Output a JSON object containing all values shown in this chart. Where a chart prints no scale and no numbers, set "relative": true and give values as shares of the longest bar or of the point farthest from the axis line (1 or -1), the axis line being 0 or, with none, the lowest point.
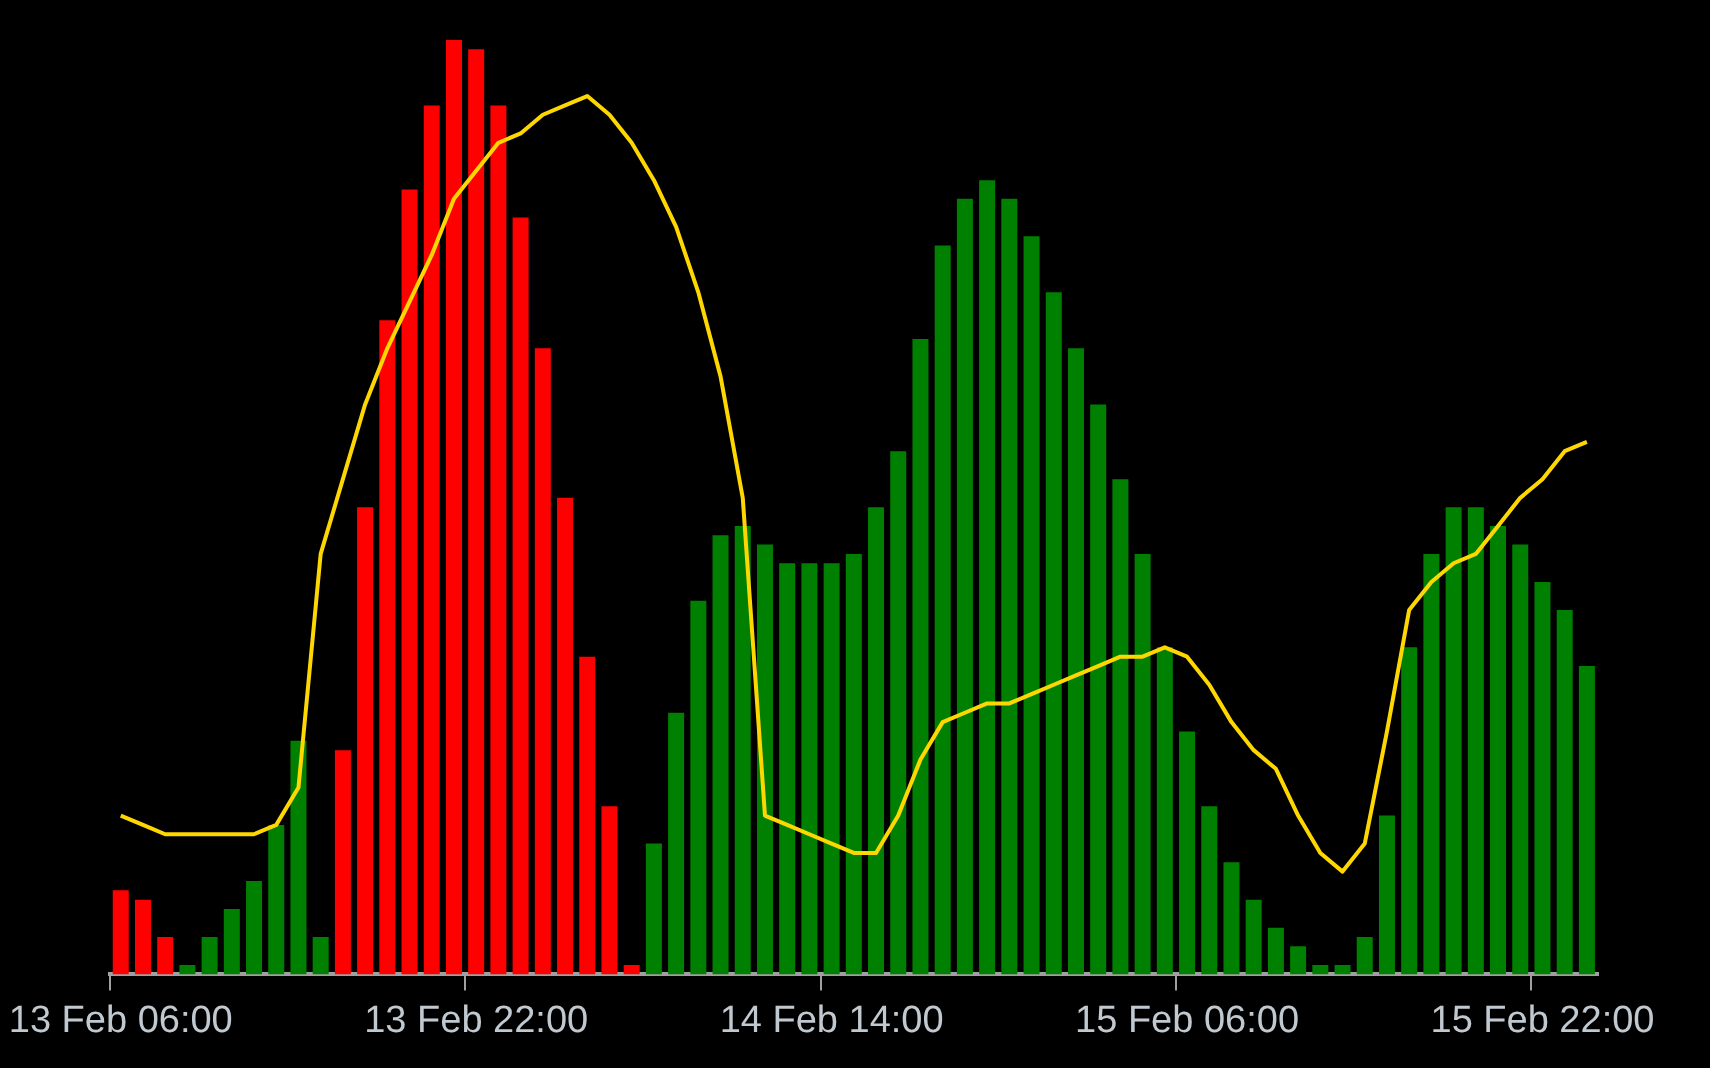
{
  "chart_data": {
    "type": "bar",
    "relative": true,
    "grid": false,
    "legend": false,
    "tick_labels": "x",
    "marker": "none",
    "categories": [
      "13 Feb 06:00",
      null,
      null,
      null,
      null,
      null,
      null,
      null,
      null,
      null,
      null,
      null,
      null,
      null,
      null,
      null,
      "13 Feb 22:00",
      null,
      null,
      null,
      null,
      null,
      null,
      null,
      null,
      null,
      null,
      null,
      null,
      null,
      null,
      null,
      "14 Feb 14:00",
      null,
      null,
      null,
      null,
      null,
      null,
      null,
      null,
      null,
      null,
      null,
      null,
      null,
      null,
      null,
      "15 Feb 06:00",
      null,
      null,
      null,
      null,
      null,
      null,
      null,
      null,
      null,
      null,
      null,
      null,
      null,
      null,
      null,
      "15 Feb 22:00",
      null,
      null
    ],
    "series": [
      {
        "type": "bar",
        "colors": [
          "#ff0000",
          "#ff0000",
          "#ff0000",
          "#008000",
          "#008000",
          "#008000",
          "#008000",
          "#008000",
          "#008000",
          "#008000",
          "#ff0000",
          "#ff0000",
          "#ff0000",
          "#ff0000",
          "#ff0000",
          "#ff0000",
          "#ff0000",
          "#ff0000",
          "#ff0000",
          "#ff0000",
          "#ff0000",
          "#ff0000",
          "#ff0000",
          "#ff0000",
          "#008000",
          "#008000",
          "#008000",
          "#008000",
          "#008000",
          "#008000",
          "#008000",
          "#008000",
          "#008000",
          "#008000",
          "#008000",
          "#008000",
          "#008000",
          "#008000",
          "#008000",
          "#008000",
          "#008000",
          "#008000",
          "#008000",
          "#008000",
          "#008000",
          "#008000",
          "#008000",
          "#008000",
          "#008000",
          "#008000",
          "#008000",
          "#008000",
          "#008000",
          "#008000",
          "#008000",
          "#008000",
          "#008000",
          "#008000",
          "#008000",
          "#008000",
          "#008000",
          "#008000",
          "#008000",
          "#008000",
          "#008000",
          "#008000",
          "#008000"
        ],
        "values": [
          0.09,
          0.08,
          0.04,
          0.01,
          0.04,
          0.07,
          0.1,
          0.16,
          0.25,
          0.04,
          0.24,
          0.5,
          0.7,
          0.84,
          0.93,
          1,
          0.99,
          0.93,
          0.81,
          0.67,
          0.51,
          0.34,
          0.18,
          0.01,
          0.14,
          0.28,
          0.4,
          0.47,
          0.48,
          0.46,
          0.44,
          0.44,
          0.44,
          0.45,
          0.5,
          0.56,
          0.68,
          0.78,
          0.83,
          0.85,
          0.83,
          0.79,
          0.73,
          0.67,
          0.61,
          0.53,
          0.45,
          0.35,
          0.26,
          0.18,
          0.12,
          0.08,
          0.05,
          0.03,
          0.01,
          0.01,
          0.04,
          0.17,
          0.35,
          0.45,
          0.5,
          0.5,
          0.48,
          0.46,
          0.42,
          0.39,
          0.33
        ]
      },
      {
        "type": "line",
        "color": "#ffd700",
        "line_style": "solid",
        "values": [
          0.17,
          0.16,
          0.15,
          0.15,
          0.15,
          0.15,
          0.15,
          0.16,
          0.2,
          0.45,
          0.53,
          0.61,
          0.67,
          0.72,
          0.77,
          0.83,
          0.86,
          0.89,
          0.9,
          0.92,
          0.93,
          0.94,
          0.92,
          0.89,
          0.85,
          0.8,
          0.73,
          0.64,
          0.51,
          0.17,
          0.16,
          0.15,
          0.14,
          0.13,
          0.13,
          0.17,
          0.23,
          0.27,
          0.28,
          0.29,
          0.29,
          0.3,
          0.31,
          0.32,
          0.33,
          0.34,
          0.34,
          0.35,
          0.34,
          0.31,
          0.27,
          0.24,
          0.22,
          0.17,
          0.13,
          0.11,
          0.14,
          0.26,
          0.39,
          0.42,
          0.44,
          0.45,
          0.48,
          0.51,
          0.53,
          0.56,
          0.57
        ]
      }
    ]
  }
}
